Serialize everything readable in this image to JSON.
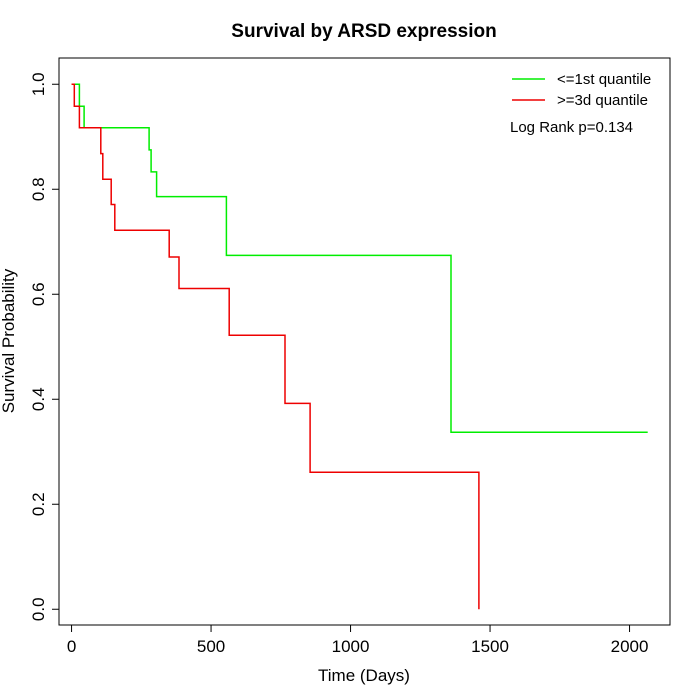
{
  "chart_data": {
    "type": "line",
    "title": "Survival by ARSD expression",
    "xlabel": "Time (Days)",
    "ylabel": "Survival Probability",
    "xlim": [
      -45,
      2145
    ],
    "ylim": [
      -0.03,
      1.05
    ],
    "x_ticks": [
      0,
      500,
      1000,
      1500,
      2000
    ],
    "y_ticks": [
      0.0,
      0.2,
      0.4,
      0.6,
      0.8,
      1.0
    ],
    "x_tick_labels": [
      "0",
      "500",
      "1000",
      "1500",
      "2000"
    ],
    "y_tick_labels": [
      "0.0",
      "0.2",
      "0.4",
      "0.6",
      "0.8",
      "1.0"
    ],
    "grid": false,
    "legend_position": "top-right",
    "annotation": "Log Rank p=0.134",
    "series": [
      {
        "name": "<=1st quantile",
        "color": "#00ee00",
        "points": [
          [
            0,
            1.0
          ],
          [
            28,
            1.0
          ],
          [
            28,
            0.958
          ],
          [
            45,
            0.958
          ],
          [
            45,
            0.917
          ],
          [
            278,
            0.917
          ],
          [
            278,
            0.875
          ],
          [
            285,
            0.875
          ],
          [
            285,
            0.833
          ],
          [
            305,
            0.833
          ],
          [
            305,
            0.786
          ],
          [
            555,
            0.786
          ],
          [
            555,
            0.674
          ],
          [
            1360,
            0.674
          ],
          [
            1360,
            0.337
          ],
          [
            2065,
            0.337
          ]
        ]
      },
      {
        "name": ">=3d quantile",
        "color": "#ee0000",
        "points": [
          [
            0,
            1.0
          ],
          [
            10,
            1.0
          ],
          [
            10,
            0.958
          ],
          [
            28,
            0.958
          ],
          [
            28,
            0.917
          ],
          [
            105,
            0.917
          ],
          [
            105,
            0.868
          ],
          [
            112,
            0.868
          ],
          [
            112,
            0.819
          ],
          [
            142,
            0.819
          ],
          [
            142,
            0.771
          ],
          [
            155,
            0.771
          ],
          [
            155,
            0.722
          ],
          [
            350,
            0.722
          ],
          [
            350,
            0.671
          ],
          [
            385,
            0.671
          ],
          [
            385,
            0.611
          ],
          [
            565,
            0.611
          ],
          [
            565,
            0.522
          ],
          [
            765,
            0.522
          ],
          [
            765,
            0.392
          ],
          [
            855,
            0.392
          ],
          [
            855,
            0.261
          ],
          [
            1460,
            0.261
          ],
          [
            1460,
            0.0
          ]
        ]
      }
    ]
  }
}
